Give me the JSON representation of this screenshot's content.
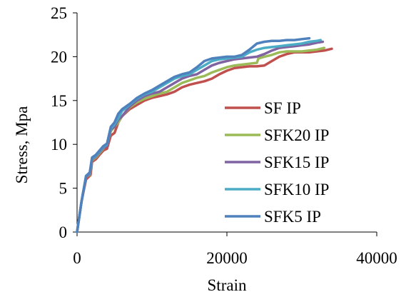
{
  "chart_data": {
    "type": "line",
    "xlabel": "Strain",
    "ylabel": "Stress, Mpa",
    "xlim": [
      0,
      40000
    ],
    "ylim": [
      0,
      25
    ],
    "x_ticks": [
      "0",
      "20000",
      "40000"
    ],
    "y_ticks": [
      "0",
      "5",
      "10",
      "15",
      "20",
      "25"
    ],
    "legend_position": "right",
    "series": [
      {
        "name": "SF IP",
        "color": "#C0504D",
        "points": [
          [
            0,
            0
          ],
          [
            600,
            3.5
          ],
          [
            1200,
            6
          ],
          [
            1800,
            6.5
          ],
          [
            2000,
            8
          ],
          [
            2500,
            8.3
          ],
          [
            3000,
            8.8
          ],
          [
            3500,
            9.3
          ],
          [
            4000,
            9.5
          ],
          [
            4500,
            11
          ],
          [
            5000,
            11.3
          ],
          [
            5500,
            12.5
          ],
          [
            6000,
            13.2
          ],
          [
            7000,
            14
          ],
          [
            8000,
            14.5
          ],
          [
            9000,
            15
          ],
          [
            10000,
            15.3
          ],
          [
            11000,
            15.5
          ],
          [
            12000,
            15.7
          ],
          [
            13000,
            16
          ],
          [
            14000,
            16.5
          ],
          [
            15000,
            16.8
          ],
          [
            16000,
            17
          ],
          [
            17000,
            17.2
          ],
          [
            18000,
            17.5
          ],
          [
            19000,
            18
          ],
          [
            20000,
            18.4
          ],
          [
            21000,
            18.7
          ],
          [
            22000,
            18.8
          ],
          [
            23000,
            18.9
          ],
          [
            24000,
            18.9
          ],
          [
            25000,
            19
          ],
          [
            26000,
            19.5
          ],
          [
            27000,
            20
          ],
          [
            28000,
            20.3
          ],
          [
            29000,
            20.5
          ],
          [
            30000,
            20.5
          ],
          [
            31000,
            20.5
          ],
          [
            32000,
            20.6
          ],
          [
            33000,
            20.7
          ],
          [
            34000,
            20.9
          ]
        ]
      },
      {
        "name": "SFK20 IP",
        "color": "#9BBB59",
        "points": [
          [
            0,
            0
          ],
          [
            600,
            3.5
          ],
          [
            1200,
            6.3
          ],
          [
            1700,
            6.5
          ],
          [
            2000,
            8.2
          ],
          [
            2500,
            8.5
          ],
          [
            3000,
            9
          ],
          [
            3500,
            9.5
          ],
          [
            4000,
            10
          ],
          [
            4500,
            11.5
          ],
          [
            5000,
            12
          ],
          [
            5500,
            12.5
          ],
          [
            6000,
            13.2
          ],
          [
            7000,
            14.2
          ],
          [
            8000,
            14.8
          ],
          [
            9000,
            15.2
          ],
          [
            10000,
            15.5
          ],
          [
            11000,
            15.8
          ],
          [
            12000,
            16
          ],
          [
            13000,
            16.5
          ],
          [
            14000,
            17
          ],
          [
            15000,
            17.3
          ],
          [
            16000,
            17.6
          ],
          [
            17000,
            17.8
          ],
          [
            18000,
            18.2
          ],
          [
            19000,
            18.5
          ],
          [
            20000,
            18.8
          ],
          [
            21000,
            19
          ],
          [
            22000,
            19.1
          ],
          [
            23000,
            19.2
          ],
          [
            24000,
            19.3
          ],
          [
            24200,
            19.8
          ],
          [
            25000,
            20
          ],
          [
            26000,
            20.2
          ],
          [
            27000,
            20.5
          ],
          [
            28000,
            20.6
          ],
          [
            29000,
            20.6
          ],
          [
            30000,
            20.6
          ],
          [
            31000,
            20.7
          ],
          [
            32000,
            20.8
          ],
          [
            33000,
            21
          ]
        ]
      },
      {
        "name": "SFK15 IP",
        "color": "#8064A2",
        "points": [
          [
            0,
            0
          ],
          [
            600,
            3.5
          ],
          [
            1200,
            6.3
          ],
          [
            1700,
            6.6
          ],
          [
            2000,
            8.3
          ],
          [
            2500,
            8.6
          ],
          [
            3000,
            9.1
          ],
          [
            3500,
            9.6
          ],
          [
            4000,
            9.8
          ],
          [
            4500,
            11.7
          ],
          [
            5000,
            12
          ],
          [
            5500,
            12.8
          ],
          [
            6000,
            13.2
          ],
          [
            7000,
            14.3
          ],
          [
            8000,
            15
          ],
          [
            9000,
            15.5
          ],
          [
            10000,
            15.8
          ],
          [
            11000,
            16
          ],
          [
            12000,
            16.5
          ],
          [
            13000,
            17
          ],
          [
            14000,
            17.5
          ],
          [
            15000,
            17.8
          ],
          [
            16000,
            18
          ],
          [
            17000,
            18.5
          ],
          [
            18000,
            19
          ],
          [
            19000,
            19.3
          ],
          [
            20000,
            19.5
          ],
          [
            21000,
            19.7
          ],
          [
            22000,
            19.8
          ],
          [
            23000,
            19.9
          ],
          [
            24000,
            20
          ],
          [
            25000,
            20.3
          ],
          [
            26000,
            20.7
          ],
          [
            27000,
            21
          ],
          [
            28000,
            21.1
          ],
          [
            29000,
            21.2
          ],
          [
            30000,
            21.3
          ],
          [
            31000,
            21.4
          ],
          [
            32000,
            21.6
          ],
          [
            32800,
            21.7
          ]
        ]
      },
      {
        "name": "SFK10 IP",
        "color": "#4BACC6",
        "points": [
          [
            0,
            0
          ],
          [
            600,
            3.5
          ],
          [
            1200,
            6.4
          ],
          [
            1700,
            6.7
          ],
          [
            2000,
            8.4
          ],
          [
            2500,
            8.7
          ],
          [
            3000,
            9.2
          ],
          [
            3500,
            9.7
          ],
          [
            4000,
            10
          ],
          [
            4500,
            11.8
          ],
          [
            5000,
            12.3
          ],
          [
            5500,
            13
          ],
          [
            6000,
            13.8
          ],
          [
            7000,
            14.5
          ],
          [
            8000,
            15.2
          ],
          [
            9000,
            15.7
          ],
          [
            10000,
            16
          ],
          [
            11000,
            16.5
          ],
          [
            12000,
            17
          ],
          [
            13000,
            17.5
          ],
          [
            14000,
            17.8
          ],
          [
            15000,
            18
          ],
          [
            16000,
            18.5
          ],
          [
            17000,
            19
          ],
          [
            18000,
            19.5
          ],
          [
            19000,
            19.7
          ],
          [
            20000,
            19.8
          ],
          [
            21000,
            19.9
          ],
          [
            22000,
            20
          ],
          [
            23000,
            20.5
          ],
          [
            24000,
            20.8
          ],
          [
            25000,
            21
          ],
          [
            26000,
            21.1
          ],
          [
            27000,
            21.2
          ],
          [
            28000,
            21.3
          ],
          [
            29000,
            21.4
          ],
          [
            30000,
            21.5
          ],
          [
            31000,
            21.7
          ],
          [
            32000,
            21.8
          ],
          [
            32500,
            21.9
          ]
        ]
      },
      {
        "name": "SFK5 IP",
        "color": "#4F81BD",
        "points": [
          [
            0,
            0
          ],
          [
            600,
            3.5
          ],
          [
            1200,
            6.4
          ],
          [
            1700,
            6.8
          ],
          [
            2000,
            8.5
          ],
          [
            2500,
            8.8
          ],
          [
            3000,
            9.3
          ],
          [
            3500,
            9.8
          ],
          [
            4000,
            10.1
          ],
          [
            4500,
            12
          ],
          [
            5000,
            12.5
          ],
          [
            5500,
            13.5
          ],
          [
            6000,
            14
          ],
          [
            7000,
            14.6
          ],
          [
            8000,
            15.3
          ],
          [
            9000,
            15.8
          ],
          [
            10000,
            16.2
          ],
          [
            11000,
            16.7
          ],
          [
            12000,
            17.2
          ],
          [
            13000,
            17.7
          ],
          [
            14000,
            18
          ],
          [
            15000,
            18.2
          ],
          [
            16000,
            18.8
          ],
          [
            17000,
            19.5
          ],
          [
            18000,
            19.8
          ],
          [
            19000,
            19.9
          ],
          [
            20000,
            20
          ],
          [
            21000,
            20
          ],
          [
            22000,
            20.2
          ],
          [
            23000,
            20.8
          ],
          [
            24000,
            21.5
          ],
          [
            25000,
            21.7
          ],
          [
            26000,
            21.8
          ],
          [
            27000,
            21.8
          ],
          [
            28000,
            21.9
          ],
          [
            29000,
            21.9
          ],
          [
            30000,
            22
          ],
          [
            31000,
            22.1
          ]
        ]
      }
    ]
  }
}
